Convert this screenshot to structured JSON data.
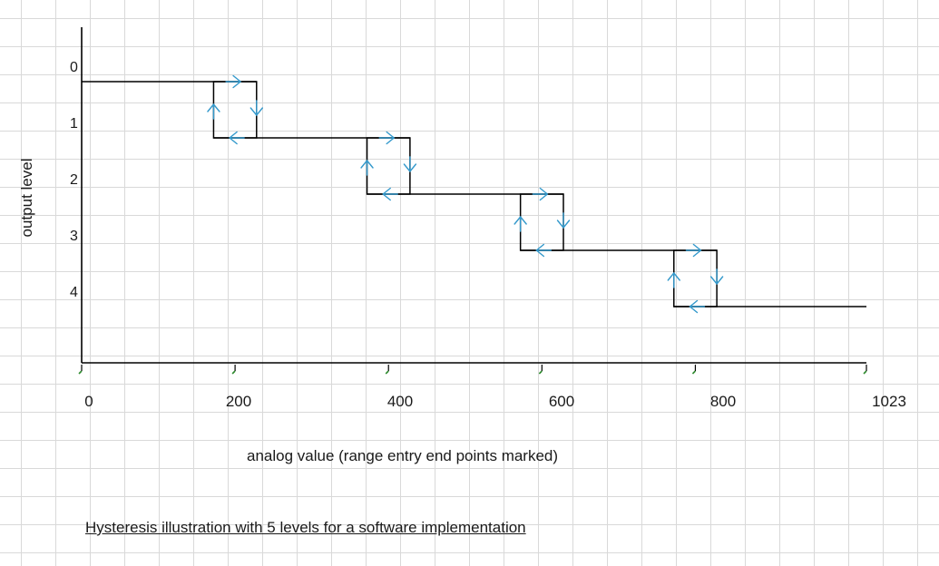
{
  "diagram": {
    "y_axis": {
      "title": "output level",
      "levels": [
        "0",
        "1",
        "2",
        "3",
        "4"
      ]
    },
    "x_axis": {
      "title": "analog value (range entry end points marked)",
      "ticks": [
        {
          "label": "0",
          "value": 0
        },
        {
          "label": "200",
          "value": 200
        },
        {
          "label": "400",
          "value": 400
        },
        {
          "label": "600",
          "value": 600
        },
        {
          "label": "800",
          "value": 800
        },
        {
          "label": "1023",
          "value": 1023
        }
      ]
    },
    "caption": "Hysteresis illustration with 5 levels for a software implementation",
    "hysteresis_loops": [
      {
        "from_level": 0,
        "to_level": 1,
        "enter_value": 172,
        "exit_value": 228
      },
      {
        "from_level": 1,
        "to_level": 2,
        "enter_value": 372,
        "exit_value": 428
      },
      {
        "from_level": 2,
        "to_level": 3,
        "enter_value": 572,
        "exit_value": 628
      },
      {
        "from_level": 3,
        "to_level": 4,
        "enter_value": 772,
        "exit_value": 828
      }
    ],
    "colors": {
      "line": "#000000",
      "arrow": "#3399cc",
      "tick_marker": "#2e8b2e",
      "grid": "#d9d9d9"
    }
  }
}
